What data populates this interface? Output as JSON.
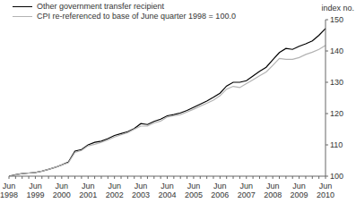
{
  "chart_data": {
    "type": "line",
    "y_label": "index no.",
    "categories": [
      "Jun 1998",
      null,
      null,
      null,
      "Jun 1999",
      null,
      null,
      null,
      "Jun 2000",
      null,
      null,
      null,
      "Jun 2001",
      null,
      null,
      null,
      "Jun 2002",
      null,
      null,
      null,
      "Jun 2003",
      null,
      null,
      null,
      "Jun 2004",
      null,
      null,
      null,
      "Jun 2005",
      null,
      null,
      null,
      "Jun 2006",
      null,
      null,
      null,
      "Jun 2007",
      null,
      null,
      null,
      "Jun 2008",
      null,
      null,
      null,
      "Jun 2009",
      null,
      null,
      null,
      "Jun 2010"
    ],
    "series": [
      {
        "name": "Other government transfer recipient",
        "color": "#000000",
        "values": [
          100,
          100.5,
          100.8,
          101,
          101.2,
          101.6,
          102.2,
          102.8,
          103.6,
          104.5,
          108,
          108.5,
          110,
          110.8,
          111.2,
          112,
          113,
          113.6,
          114.2,
          115.2,
          116.8,
          116.5,
          117.5,
          118.2,
          119.3,
          119.7,
          120.2,
          121,
          122,
          123,
          124,
          125.2,
          126.5,
          128.8,
          130,
          130,
          130.5,
          132,
          133.5,
          134.8,
          137.2,
          139.5,
          140.8,
          140.5,
          141.5,
          142.3,
          143.2,
          145,
          147.2
        ]
      },
      {
        "name": "CPI re-referenced to base of June quarter 1998 = 100.0",
        "color": "#b3b3b3",
        "values": [
          100,
          100.4,
          100.8,
          101,
          101.2,
          101.6,
          102.2,
          102.8,
          103.6,
          104.3,
          107.6,
          108.2,
          109.7,
          110.2,
          110.8,
          111.6,
          112.5,
          113.2,
          113.9,
          115,
          116,
          116,
          117,
          117.6,
          118.9,
          119.3,
          119.7,
          120.5,
          121.4,
          122.4,
          123.3,
          124.3,
          125.7,
          127.8,
          128.7,
          128.3,
          129.6,
          130.8,
          132.1,
          133.3,
          135.4,
          137.6,
          137.3,
          137.3,
          137.9,
          138.9,
          139.6,
          140.5,
          141.8
        ]
      }
    ],
    "ylim": [
      100,
      150
    ],
    "yticks": [
      100,
      110,
      120,
      130,
      140,
      150
    ],
    "grid": false,
    "legend": "upper left"
  }
}
